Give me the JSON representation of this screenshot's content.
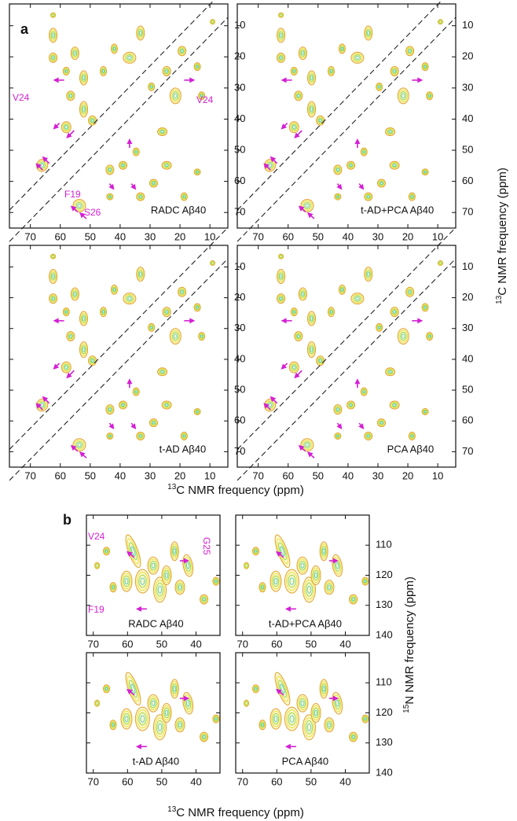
{
  "panel_a": {
    "label": "a",
    "x_axis": {
      "title_sup": "13",
      "title": "C NMR frequency (ppm)",
      "lim": [
        77,
        4
      ],
      "ticks": [
        70,
        60,
        50,
        40,
        30,
        20,
        10
      ]
    },
    "y_axis": {
      "title_sup": "13",
      "title": "C NMR frequency (ppm)",
      "lim": [
        3,
        75
      ],
      "ticks": [
        10,
        20,
        30,
        40,
        50,
        60,
        70
      ]
    },
    "plots": [
      {
        "label": "RADC Aβ40",
        "annotations": [
          "V24",
          "V24",
          "F19",
          "S26"
        ]
      },
      {
        "label": "t-AD+PCA Aβ40"
      },
      {
        "label": "t-AD Aβ40"
      },
      {
        "label": "PCA Aβ40"
      }
    ]
  },
  "panel_b": {
    "label": "b",
    "x_axis": {
      "title_sup": "13",
      "title": "C NMR frequency (ppm)",
      "lim": [
        72,
        33
      ],
      "ticks": [
        70,
        60,
        50,
        40
      ]
    },
    "y_axis": {
      "title_sup": "15",
      "title": "N NMR frequency (ppm)",
      "lim": [
        100,
        140
      ],
      "ticks": [
        110,
        120,
        130,
        140
      ]
    },
    "plots": [
      {
        "label": "RADC Aβ40",
        "annotations": [
          "V24",
          "G25",
          "F19"
        ]
      },
      {
        "label": "t-AD+PCA Aβ40"
      },
      {
        "label": "t-AD Aβ40"
      },
      {
        "label": "PCA Aβ40"
      }
    ]
  }
}
